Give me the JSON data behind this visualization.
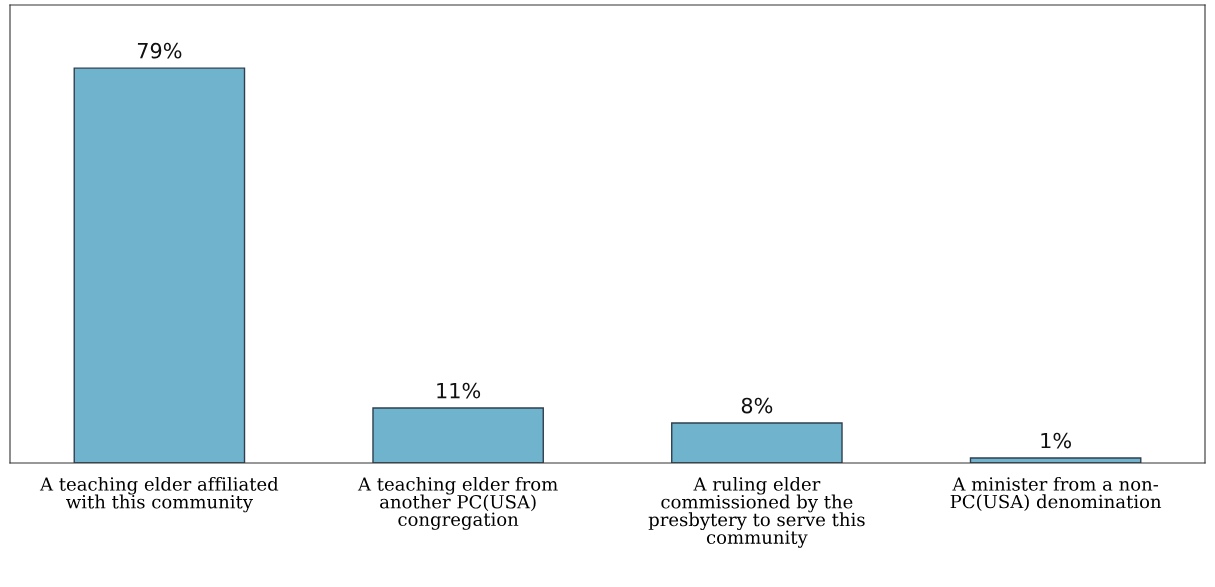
{
  "chart_data": {
    "type": "bar",
    "categories": [
      "A teaching elder affiliated\nwith this community",
      "A teaching elder from\nanother PC(USA)\ncongregation",
      "A ruling elder\ncommissioned by the\npresbytery to serve this\ncommunity",
      "A minister from a non-\nPC(USA) denomination"
    ],
    "values": [
      79,
      11,
      8,
      1
    ],
    "color": "#70b3cc",
    "value_labels": [
      "79%",
      "11%",
      "8%",
      "1%"
    ],
    "grid": false,
    "legend": false
  }
}
